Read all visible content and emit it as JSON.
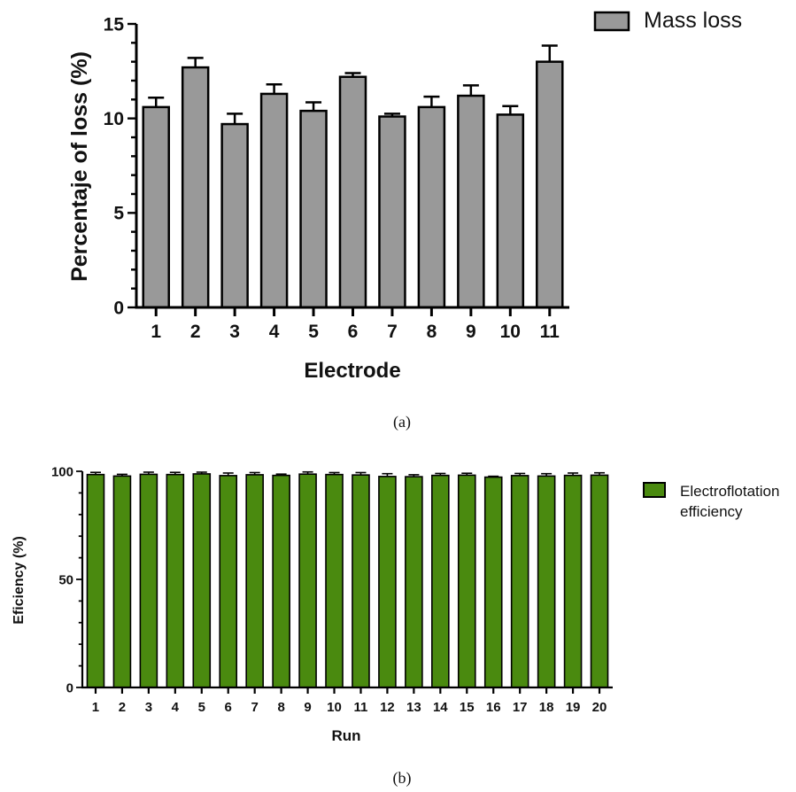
{
  "chart_data": [
    {
      "type": "bar",
      "panel": "(a)",
      "ylabel": "Percentaje of loss (%)",
      "xlabel": "Electrode",
      "ylim": [
        0,
        15
      ],
      "yticks": [
        0,
        5,
        10,
        15
      ],
      "categories": [
        "1",
        "2",
        "3",
        "4",
        "5",
        "6",
        "7",
        "8",
        "9",
        "10",
        "11"
      ],
      "series": [
        {
          "name": "Mass loss",
          "color": "#999999",
          "values": [
            10.6,
            12.7,
            9.7,
            11.3,
            10.4,
            12.2,
            10.1,
            10.6,
            11.2,
            10.2,
            13.0
          ],
          "errors": [
            0.5,
            0.5,
            0.55,
            0.5,
            0.45,
            0.2,
            0.15,
            0.55,
            0.55,
            0.45,
            0.85
          ]
        }
      ],
      "legend": "top-right",
      "grid": false
    },
    {
      "type": "bar",
      "panel": "(b)",
      "ylabel": "Eficiency (%)",
      "xlabel": "Run",
      "ylim": [
        0,
        100
      ],
      "yticks": [
        0,
        50,
        100
      ],
      "categories": [
        "1",
        "2",
        "3",
        "4",
        "5",
        "6",
        "7",
        "8",
        "9",
        "10",
        "11",
        "12",
        "13",
        "14",
        "15",
        "16",
        "17",
        "18",
        "19",
        "20"
      ],
      "series": [
        {
          "name": "Electroflotation efficiency",
          "name_lines": [
            "Electroflotation",
            "efficiency"
          ],
          "color": "#4a8a0f",
          "values": [
            98.5,
            97.8,
            98.6,
            98.5,
            98.8,
            98.0,
            98.4,
            98.1,
            98.7,
            98.5,
            98.3,
            97.6,
            97.5,
            98.1,
            98.2,
            97.3,
            98.0,
            97.8,
            98.1,
            98.2
          ],
          "errors": [
            1.0,
            0.8,
            1.0,
            1.0,
            0.8,
            1.2,
            1.0,
            0.6,
            1.0,
            0.9,
            1.1,
            1.3,
            0.9,
            0.9,
            0.9,
            0.4,
            1.0,
            1.1,
            1.1,
            1.1
          ]
        }
      ],
      "legend": "top-right",
      "grid": false
    }
  ],
  "captions": {
    "a": "(a)",
    "b": "(b)"
  }
}
